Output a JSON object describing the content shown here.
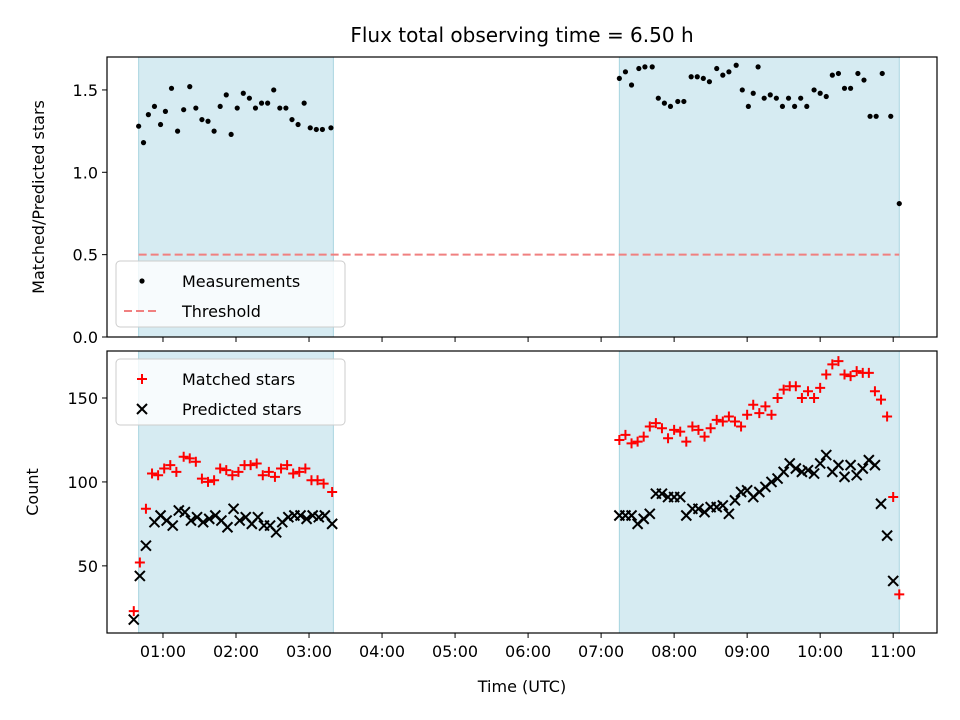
{
  "title": "Flux total observing time = 6.50 h",
  "chart_data": [
    {
      "type": "scatter",
      "panel": "top",
      "ylabel": "Matched/Predicted stars",
      "ylim": [
        0,
        1.7
      ],
      "yticks": [
        0.0,
        0.5,
        1.0,
        1.5
      ],
      "ytick_labels": [
        "0.0",
        "0.5",
        "1.0",
        "1.5"
      ],
      "xlim": [
        "00:14",
        "11:36"
      ],
      "legend_position": "lower-left",
      "shaded_intervals": [
        [
          "00:40",
          "03:20"
        ],
        [
          "07:15",
          "11:05"
        ]
      ],
      "series": [
        {
          "name": "Measurements",
          "marker": "dot",
          "color": "#000000",
          "points": [
            [
              "00:40",
              1.28
            ],
            [
              "00:44",
              1.18
            ],
            [
              "00:48",
              1.35
            ],
            [
              "00:53",
              1.4
            ],
            [
              "00:58",
              1.29
            ],
            [
              "01:02",
              1.37
            ],
            [
              "01:07",
              1.51
            ],
            [
              "01:12",
              1.25
            ],
            [
              "01:17",
              1.38
            ],
            [
              "01:22",
              1.52
            ],
            [
              "01:27",
              1.39
            ],
            [
              "01:32",
              1.32
            ],
            [
              "01:37",
              1.31
            ],
            [
              "01:42",
              1.25
            ],
            [
              "01:47",
              1.4
            ],
            [
              "01:52",
              1.47
            ],
            [
              "01:56",
              1.23
            ],
            [
              "02:01",
              1.39
            ],
            [
              "02:06",
              1.48
            ],
            [
              "02:11",
              1.45
            ],
            [
              "02:16",
              1.39
            ],
            [
              "02:21",
              1.42
            ],
            [
              "02:26",
              1.42
            ],
            [
              "02:31",
              1.5
            ],
            [
              "02:36",
              1.39
            ],
            [
              "02:41",
              1.39
            ],
            [
              "02:46",
              1.32
            ],
            [
              "02:51",
              1.29
            ],
            [
              "02:56",
              1.42
            ],
            [
              "03:01",
              1.27
            ],
            [
              "03:06",
              1.26
            ],
            [
              "03:11",
              1.26
            ],
            [
              "03:18",
              1.27
            ],
            [
              "07:15",
              1.57
            ],
            [
              "07:20",
              1.61
            ],
            [
              "07:25",
              1.53
            ],
            [
              "07:31",
              1.63
            ],
            [
              "07:36",
              1.64
            ],
            [
              "07:42",
              1.64
            ],
            [
              "07:47",
              1.45
            ],
            [
              "07:52",
              1.42
            ],
            [
              "07:57",
              1.4
            ],
            [
              "08:03",
              1.43
            ],
            [
              "08:08",
              1.43
            ],
            [
              "08:14",
              1.58
            ],
            [
              "08:19",
              1.58
            ],
            [
              "08:24",
              1.57
            ],
            [
              "08:29",
              1.55
            ],
            [
              "08:35",
              1.63
            ],
            [
              "08:40",
              1.59
            ],
            [
              "08:45",
              1.61
            ],
            [
              "08:51",
              1.65
            ],
            [
              "08:56",
              1.5
            ],
            [
              "09:01",
              1.4
            ],
            [
              "09:05",
              1.48
            ],
            [
              "09:09",
              1.64
            ],
            [
              "09:14",
              1.45
            ],
            [
              "09:19",
              1.47
            ],
            [
              "09:24",
              1.45
            ],
            [
              "09:29",
              1.4
            ],
            [
              "09:34",
              1.45
            ],
            [
              "09:39",
              1.4
            ],
            [
              "09:44",
              1.45
            ],
            [
              "09:49",
              1.4
            ],
            [
              "09:55",
              1.5
            ],
            [
              "10:00",
              1.48
            ],
            [
              "10:05",
              1.46
            ],
            [
              "10:10",
              1.59
            ],
            [
              "10:15",
              1.6
            ],
            [
              "10:20",
              1.51
            ],
            [
              "10:25",
              1.51
            ],
            [
              "10:31",
              1.6
            ],
            [
              "10:36",
              1.56
            ],
            [
              "10:41",
              1.34
            ],
            [
              "10:46",
              1.34
            ],
            [
              "10:51",
              1.6
            ],
            [
              "10:58",
              1.34
            ],
            [
              "11:05",
              0.81
            ]
          ]
        },
        {
          "name": "Threshold",
          "style": "dashed-line",
          "color": "#f08080",
          "y": 0.5,
          "x_range": [
            "00:40",
            "11:05"
          ]
        }
      ]
    },
    {
      "type": "scatter",
      "panel": "bottom",
      "ylabel": "Count",
      "xlabel": "Time (UTC)",
      "ylim": [
        10,
        178
      ],
      "yticks": [
        50,
        100,
        150
      ],
      "ytick_labels": [
        "50",
        "100",
        "150"
      ],
      "xlim": [
        "00:14",
        "11:36"
      ],
      "xticks": [
        "01:00",
        "02:00",
        "03:00",
        "04:00",
        "05:00",
        "06:00",
        "07:00",
        "08:00",
        "09:00",
        "10:00",
        "11:00"
      ],
      "legend_position": "upper-left",
      "shaded_intervals": [
        [
          "00:40",
          "03:20"
        ],
        [
          "07:15",
          "11:05"
        ]
      ],
      "series": [
        {
          "name": "Matched stars",
          "marker": "plus",
          "color": "#ff0000",
          "points": [
            [
              "00:36",
              23
            ],
            [
              "00:41",
              52
            ],
            [
              "00:46",
              84
            ],
            [
              "00:51",
              105
            ],
            [
              "00:56",
              104
            ],
            [
              "01:01",
              108
            ],
            [
              "01:06",
              110
            ],
            [
              "01:11",
              106
            ],
            [
              "01:17",
              115
            ],
            [
              "01:22",
              114
            ],
            [
              "01:27",
              112
            ],
            [
              "01:32",
              102
            ],
            [
              "01:37",
              100
            ],
            [
              "01:42",
              101
            ],
            [
              "01:47",
              108
            ],
            [
              "01:52",
              107
            ],
            [
              "01:57",
              104
            ],
            [
              "02:02",
              106
            ],
            [
              "02:07",
              110
            ],
            [
              "02:12",
              110
            ],
            [
              "02:17",
              111
            ],
            [
              "02:22",
              104
            ],
            [
              "02:27",
              106
            ],
            [
              "02:32",
              103
            ],
            [
              "02:37",
              108
            ],
            [
              "02:42",
              110
            ],
            [
              "02:47",
              105
            ],
            [
              "02:52",
              106
            ],
            [
              "02:57",
              108
            ],
            [
              "03:02",
              101
            ],
            [
              "03:07",
              101
            ],
            [
              "03:12",
              99
            ],
            [
              "03:19",
              94
            ],
            [
              "07:15",
              125
            ],
            [
              "07:20",
              128
            ],
            [
              "07:25",
              123
            ],
            [
              "07:30",
              124
            ],
            [
              "07:35",
              127
            ],
            [
              "07:40",
              133
            ],
            [
              "07:45",
              135
            ],
            [
              "07:50",
              132
            ],
            [
              "07:55",
              126
            ],
            [
              "08:00",
              131
            ],
            [
              "08:05",
              130
            ],
            [
              "08:10",
              124
            ],
            [
              "08:15",
              133
            ],
            [
              "08:20",
              131
            ],
            [
              "08:25",
              127
            ],
            [
              "08:30",
              132
            ],
            [
              "08:35",
              137
            ],
            [
              "08:40",
              136
            ],
            [
              "08:45",
              139
            ],
            [
              "08:50",
              136
            ],
            [
              "08:55",
              133
            ],
            [
              "09:00",
              140
            ],
            [
              "09:05",
              146
            ],
            [
              "09:10",
              141
            ],
            [
              "09:15",
              145
            ],
            [
              "09:20",
              140
            ],
            [
              "09:25",
              150
            ],
            [
              "09:30",
              155
            ],
            [
              "09:35",
              157
            ],
            [
              "09:40",
              157
            ],
            [
              "09:45",
              150
            ],
            [
              "09:50",
              154
            ],
            [
              "09:55",
              150
            ],
            [
              "10:00",
              156
            ],
            [
              "10:05",
              164
            ],
            [
              "10:10",
              170
            ],
            [
              "10:15",
              172
            ],
            [
              "10:20",
              164
            ],
            [
              "10:25",
              163
            ],
            [
              "10:30",
              166
            ],
            [
              "10:35",
              165
            ],
            [
              "10:40",
              165
            ],
            [
              "10:45",
              154
            ],
            [
              "10:50",
              149
            ],
            [
              "10:55",
              139
            ],
            [
              "11:00",
              91
            ],
            [
              "11:05",
              33
            ]
          ]
        },
        {
          "name": "Predicted stars",
          "marker": "x",
          "color": "#000000",
          "points": [
            [
              "00:36",
              18
            ],
            [
              "00:41",
              44
            ],
            [
              "00:46",
              62
            ],
            [
              "00:53",
              76
            ],
            [
              "00:58",
              80
            ],
            [
              "01:03",
              77
            ],
            [
              "01:08",
              74
            ],
            [
              "01:13",
              83
            ],
            [
              "01:18",
              82
            ],
            [
              "01:23",
              77
            ],
            [
              "01:28",
              79
            ],
            [
              "01:33",
              76
            ],
            [
              "01:38",
              78
            ],
            [
              "01:43",
              80
            ],
            [
              "01:48",
              77
            ],
            [
              "01:53",
              73
            ],
            [
              "01:58",
              84
            ],
            [
              "02:03",
              77
            ],
            [
              "02:08",
              79
            ],
            [
              "02:13",
              75
            ],
            [
              "02:18",
              79
            ],
            [
              "02:23",
              74
            ],
            [
              "02:28",
              74
            ],
            [
              "02:33",
              70
            ],
            [
              "02:38",
              76
            ],
            [
              "02:43",
              79
            ],
            [
              "02:48",
              80
            ],
            [
              "02:53",
              80
            ],
            [
              "02:58",
              78
            ],
            [
              "03:03",
              80
            ],
            [
              "03:08",
              79
            ],
            [
              "03:13",
              80
            ],
            [
              "03:19",
              75
            ],
            [
              "07:15",
              80
            ],
            [
              "07:20",
              80
            ],
            [
              "07:25",
              80
            ],
            [
              "07:30",
              75
            ],
            [
              "07:35",
              78
            ],
            [
              "07:40",
              81
            ],
            [
              "07:45",
              93
            ],
            [
              "07:50",
              93
            ],
            [
              "07:55",
              91
            ],
            [
              "08:00",
              91
            ],
            [
              "08:05",
              91
            ],
            [
              "08:10",
              80
            ],
            [
              "08:15",
              84
            ],
            [
              "08:20",
              84
            ],
            [
              "08:25",
              82
            ],
            [
              "08:30",
              85
            ],
            [
              "08:35",
              85
            ],
            [
              "08:40",
              86
            ],
            [
              "08:45",
              81
            ],
            [
              "08:50",
              89
            ],
            [
              "08:55",
              94
            ],
            [
              "09:00",
              95
            ],
            [
              "09:05",
              91
            ],
            [
              "09:10",
              94
            ],
            [
              "09:15",
              97
            ],
            [
              "09:20",
              100
            ],
            [
              "09:25",
              102
            ],
            [
              "09:30",
              106
            ],
            [
              "09:35",
              111
            ],
            [
              "09:40",
              108
            ],
            [
              "09:45",
              106
            ],
            [
              "09:50",
              107
            ],
            [
              "09:55",
              105
            ],
            [
              "10:00",
              111
            ],
            [
              "10:05",
              116
            ],
            [
              "10:10",
              106
            ],
            [
              "10:15",
              110
            ],
            [
              "10:20",
              103
            ],
            [
              "10:25",
              110
            ],
            [
              "10:30",
              104
            ],
            [
              "10:35",
              108
            ],
            [
              "10:40",
              113
            ],
            [
              "10:45",
              110
            ],
            [
              "10:50",
              87
            ],
            [
              "10:55",
              68
            ],
            [
              "11:00",
              41
            ]
          ]
        }
      ]
    }
  ]
}
